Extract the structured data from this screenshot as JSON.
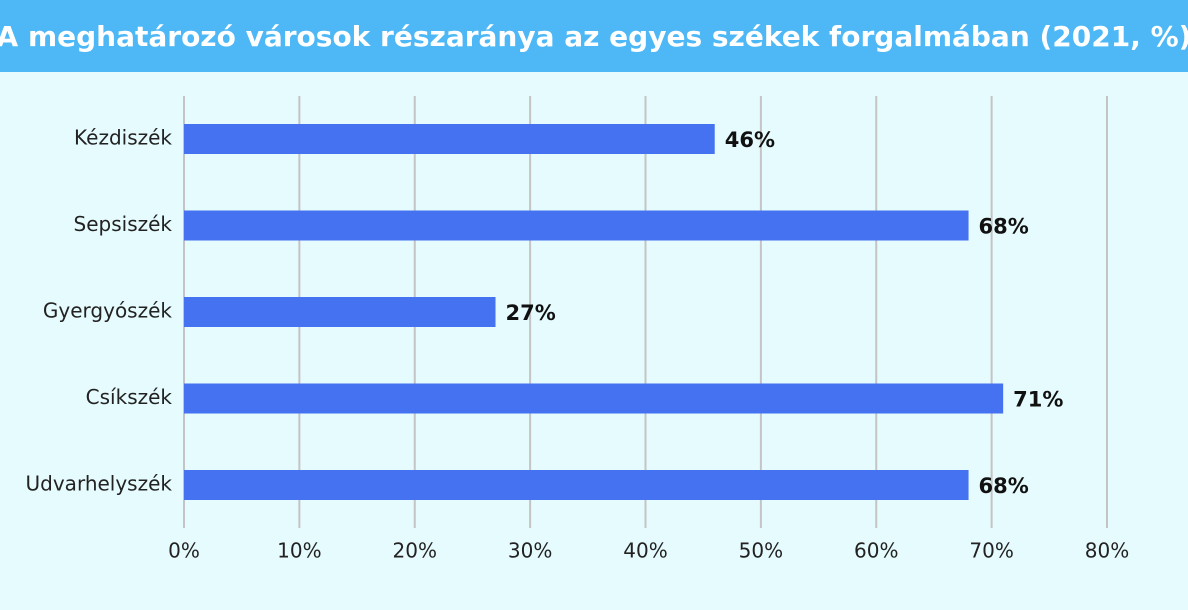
{
  "chart_data": {
    "type": "bar",
    "orientation": "horizontal",
    "title": "A meghatározó városok részaránya az egyes székek forgalmában (2021, %)",
    "categories": [
      "Kézdiszék",
      "Sepsiszék",
      "Gyergyószék",
      "Csíkszék",
      "Udvarhelyszék"
    ],
    "values": [
      46,
      68,
      27,
      71,
      68
    ],
    "value_labels": [
      "46%",
      "68%",
      "27%",
      "71%",
      "68%"
    ],
    "color": "#4472f0",
    "xlim": [
      0,
      80
    ],
    "xticks": [
      {
        "value": 0,
        "label": "0%"
      },
      {
        "value": 10,
        "label": "10%"
      },
      {
        "value": 20,
        "label": "20%"
      },
      {
        "value": 30,
        "label": "30%"
      },
      {
        "value": 40,
        "label": "40%"
      },
      {
        "value": 50,
        "label": "50%"
      },
      {
        "value": 60,
        "label": "60%"
      },
      {
        "value": 70,
        "label": "70%"
      },
      {
        "value": 80,
        "label": "80%"
      }
    ],
    "grid": true
  }
}
